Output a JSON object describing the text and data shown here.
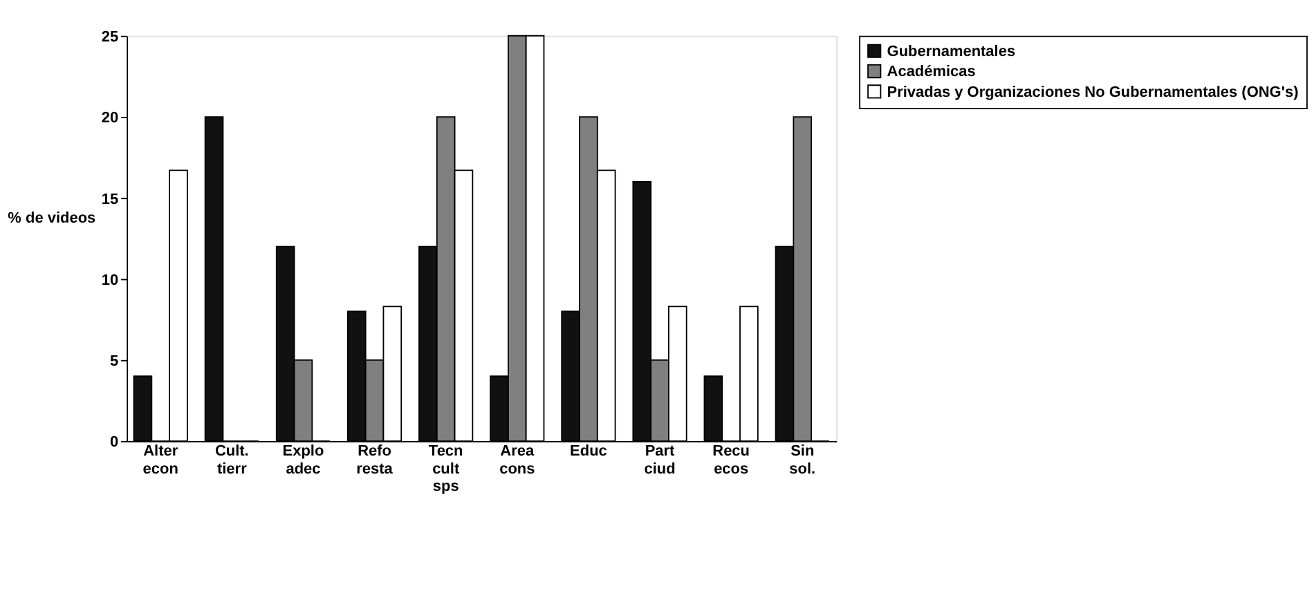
{
  "chart_data": {
    "type": "bar",
    "ylabel": "% de videos",
    "categories": [
      "Alter econ",
      "Cult. tierr",
      "Explo adec",
      "Refo resta",
      "Tecn cult sps",
      "Area cons",
      "Educ",
      "Part ciud",
      "Recu ecos",
      "Sin sol."
    ],
    "series": [
      {
        "name": "Gubernamentales",
        "color": "#111111",
        "values": [
          4,
          20,
          12,
          8,
          12,
          4,
          8,
          16,
          4,
          12
        ]
      },
      {
        "name": "Académicas",
        "color": "#808080",
        "values": [
          0,
          0,
          5,
          5,
          20,
          25,
          20,
          5,
          0,
          20
        ]
      },
      {
        "name": "Privadas y Organizaciones No Gubernamentales (ONG's)",
        "color": "#ffffff",
        "values": [
          16.7,
          0,
          0,
          8.3,
          16.7,
          25,
          16.7,
          8.3,
          8.3,
          0
        ]
      }
    ],
    "ylim": [
      0,
      25
    ],
    "yticks": [
      0,
      5,
      10,
      15,
      20,
      25
    ],
    "grid": false,
    "legend": "top right"
  }
}
